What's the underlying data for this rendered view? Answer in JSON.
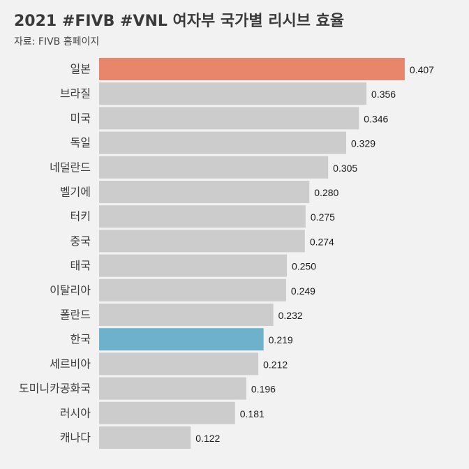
{
  "title": "2021 #FIVB #VNL 여자부 국가별 리시브 효율",
  "subtitle": "자료: FIVB 홈페이지",
  "colors": {
    "background": "#f2f2f2",
    "default_bar": "#cccccc",
    "highlight_top": "#e8866c",
    "highlight_korea": "#6eb1cb"
  },
  "chart_data": {
    "type": "bar",
    "orientation": "horizontal",
    "title": "2021 #FIVB #VNL 여자부 국가별 리시브 효율",
    "subtitle": "자료: FIVB 홈페이지",
    "xlabel": "",
    "ylabel": "",
    "grid": false,
    "legend": "none",
    "categories": [
      "일본",
      "브라질",
      "미국",
      "독일",
      "네덜란드",
      "벨기에",
      "터키",
      "중국",
      "태국",
      "이탈리아",
      "폴란드",
      "한국",
      "세르비아",
      "도미니카공화국",
      "러시아",
      "캐나다"
    ],
    "values": [
      0.407,
      0.356,
      0.346,
      0.329,
      0.305,
      0.28,
      0.275,
      0.274,
      0.25,
      0.249,
      0.232,
      0.219,
      0.212,
      0.196,
      0.181,
      0.122
    ],
    "value_labels": [
      "0.407",
      "0.356",
      "0.346",
      "0.329",
      "0.305",
      "0.280",
      "0.275",
      "0.274",
      "0.250",
      "0.249",
      "0.232",
      "0.219",
      "0.212",
      "0.196",
      "0.181",
      "0.122"
    ],
    "highlight": {
      "일본": "#e8866c",
      "한국": "#6eb1cb"
    }
  }
}
